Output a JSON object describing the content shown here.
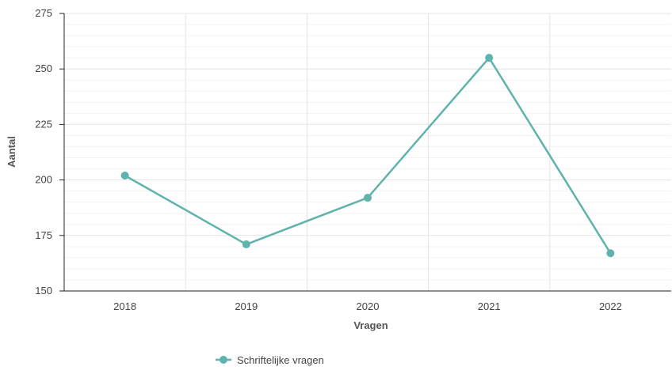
{
  "chart_data": {
    "type": "line",
    "title": "",
    "xlabel": "Vragen",
    "ylabel": "Aantal",
    "categories": [
      "2018",
      "2019",
      "2020",
      "2021",
      "2022"
    ],
    "series": [
      {
        "name": "Schriftelijke vragen",
        "values": [
          202,
          171,
          192,
          255,
          167
        ],
        "color": "#5fb3ad"
      }
    ],
    "ylim": [
      150,
      275
    ],
    "yticks": [
      150,
      175,
      200,
      225,
      250,
      275
    ],
    "grid": true,
    "legend_position": "bottom"
  }
}
